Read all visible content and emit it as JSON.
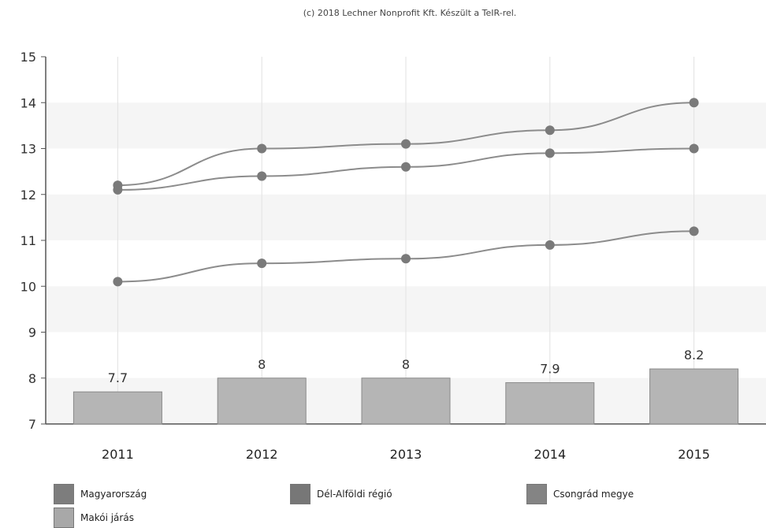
{
  "credit": "(c) 2018 Lechner Nonprofit Kft. Készült a TeIR-rel.",
  "chart_data": {
    "type": "bar+line",
    "categories": [
      "2011",
      "2012",
      "2013",
      "2014",
      "2015"
    ],
    "ylim": [
      7,
      15
    ],
    "yticks": [
      7,
      8,
      9,
      10,
      11,
      12,
      13,
      14,
      15
    ],
    "grid": true,
    "legend_position": "bottom",
    "bar_series": {
      "name": "Makói járás",
      "values": [
        7.7,
        8,
        8,
        7.9,
        8.2
      ],
      "labels": [
        "7.7",
        "8",
        "8",
        "7.9",
        "8.2"
      ],
      "color": "#b5b5b5"
    },
    "line_series": [
      {
        "name": "Magyarország",
        "values": [
          10.1,
          10.5,
          10.6,
          10.9,
          11.2
        ],
        "color": "#7a7a7a"
      },
      {
        "name": "Dél-Alföldi régió",
        "values": [
          12.1,
          12.4,
          12.6,
          12.9,
          13.0
        ],
        "color": "#7a7a7a"
      },
      {
        "name": "Csongrád megye",
        "values": [
          12.2,
          13.0,
          13.1,
          13.4,
          14.0
        ],
        "color": "#7a7a7a"
      }
    ]
  },
  "legend": [
    {
      "label": "Magyarország",
      "color": "#7d7d7d"
    },
    {
      "label": "Dél-Alföldi régió",
      "color": "#777777"
    },
    {
      "label": "Csongrád megye",
      "color": "#848484"
    },
    {
      "label": "Makói járás",
      "color": "#a8a8a8"
    }
  ]
}
